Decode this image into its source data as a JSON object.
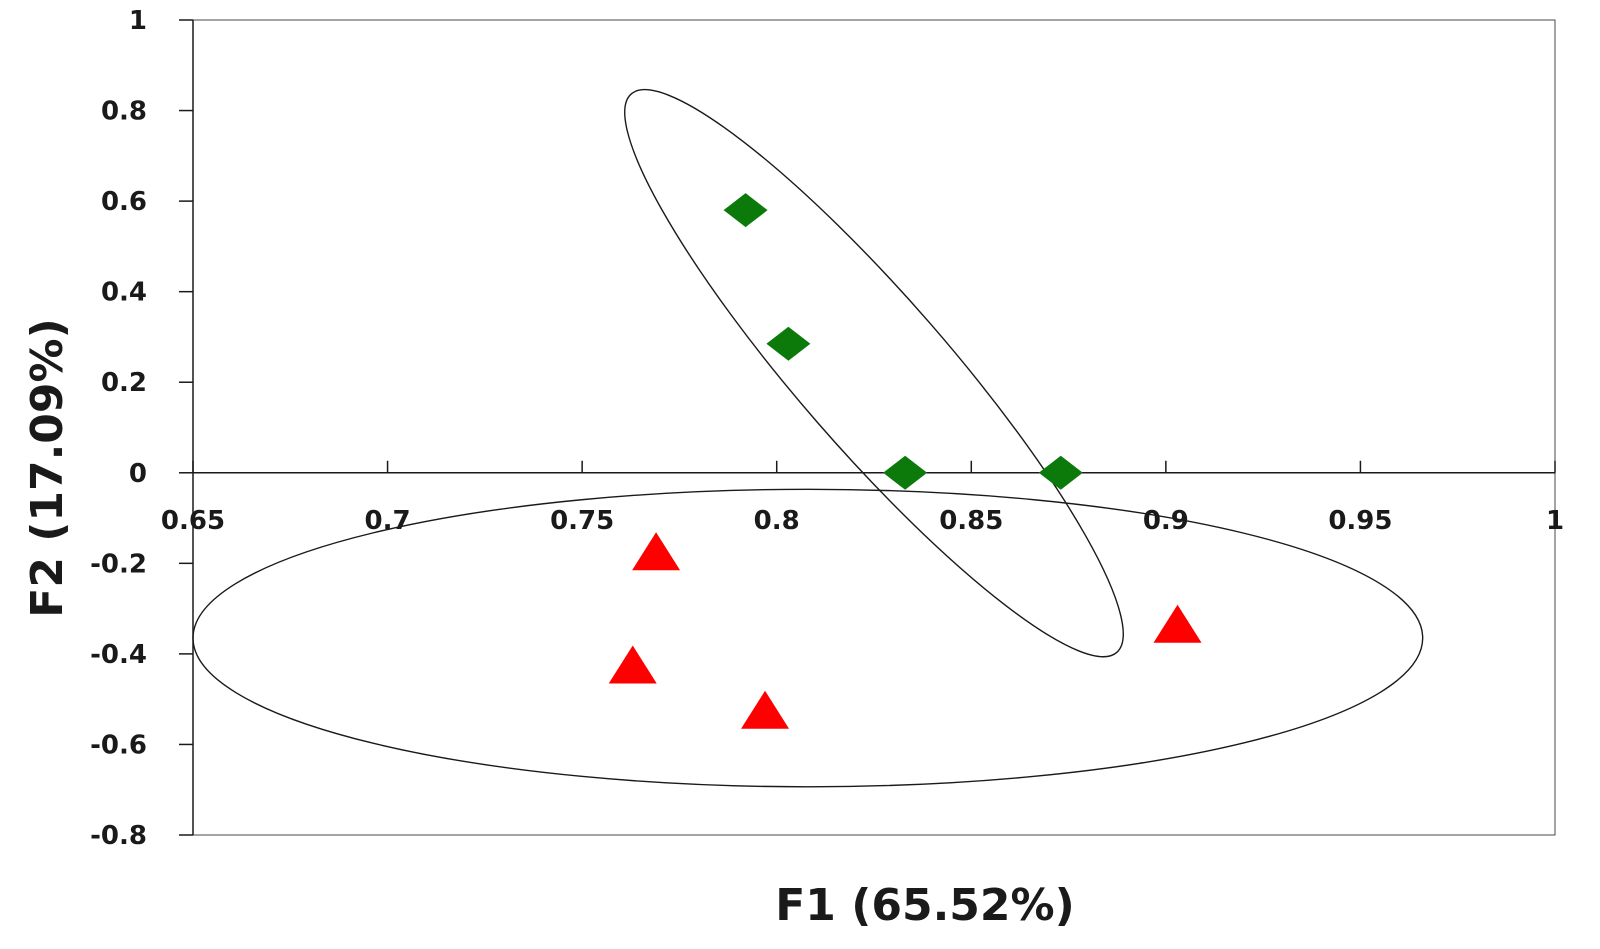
{
  "chart_data": {
    "type": "scatter",
    "title": "",
    "xlabel": "F1 (65.52%)",
    "ylabel": "F2 (17.09%)",
    "xlim": [
      0.65,
      1.0
    ],
    "ylim": [
      -0.8,
      1.0
    ],
    "x_ticks": [
      "0.65",
      "0.7",
      "0.75",
      "0.8",
      "0.85",
      "0.9",
      "0.95",
      "1"
    ],
    "y_ticks": [
      "1",
      "0.8",
      "0.6",
      "0.4",
      "0.2",
      "0",
      "-0.2",
      "-0.4",
      "-0.6",
      "-0.8"
    ],
    "grid": false,
    "legend": "none",
    "series": [
      {
        "marker": "diamond",
        "color": "#0b7a0b",
        "points": [
          {
            "x": 0.792,
            "y": 0.58
          },
          {
            "x": 0.803,
            "y": 0.285
          },
          {
            "x": 0.833,
            "y": 0.0
          },
          {
            "x": 0.873,
            "y": 0.0
          }
        ]
      },
      {
        "marker": "triangle",
        "color": "#ff0000",
        "points": [
          {
            "x": 0.769,
            "y": -0.18
          },
          {
            "x": 0.763,
            "y": -0.43
          },
          {
            "x": 0.797,
            "y": -0.53
          },
          {
            "x": 0.903,
            "y": -0.34
          }
        ]
      }
    ],
    "confidence_ellipses": [
      {
        "cx": 0.825,
        "cy": 0.22,
        "semi_axis_along": 0.62,
        "semi_axis_across": 0.075,
        "direction": "upper-left to lower-right"
      },
      {
        "cx": 0.808,
        "cy": -0.365,
        "semi_axis_x": 0.158,
        "semi_axis_y": 0.365,
        "direction": "horizontal"
      }
    ]
  }
}
